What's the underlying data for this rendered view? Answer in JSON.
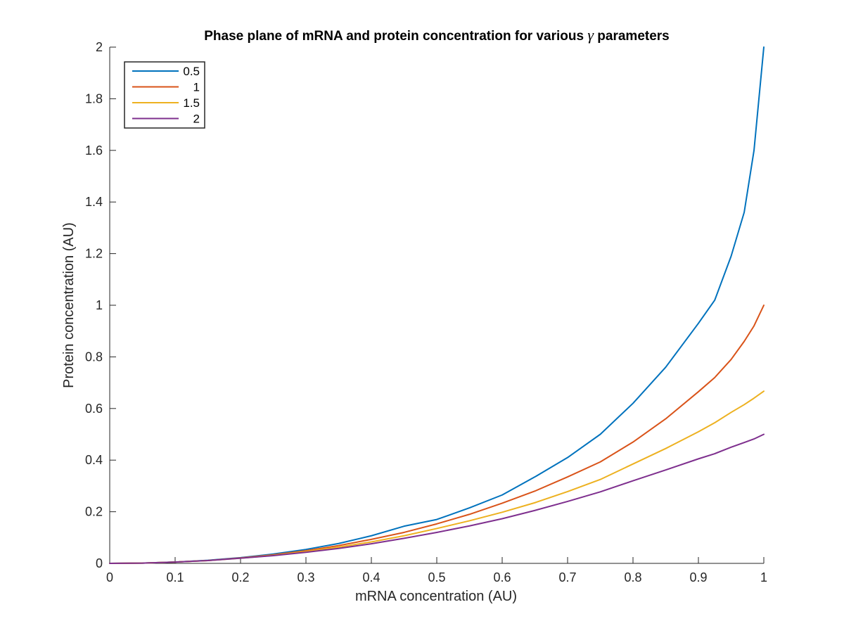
{
  "chart_data": {
    "type": "line",
    "title": "Phase plane of mRNA and protein concentration for various",
    "title_symbol": "γ",
    "title_suffix": "parameters",
    "xlabel": "mRNA concentration (AU)",
    "ylabel": "Protein concentration (AU)",
    "xlim": [
      0,
      1
    ],
    "ylim": [
      0,
      2
    ],
    "xticks": [
      "0",
      "0.1",
      "0.2",
      "0.3",
      "0.4",
      "0.5",
      "0.6",
      "0.7",
      "0.8",
      "0.9",
      "1"
    ],
    "yticks": [
      "0",
      "0.2",
      "0.4",
      "0.6",
      "0.8",
      "1",
      "1.2",
      "1.4",
      "1.6",
      "1.8",
      "2"
    ],
    "grid": false,
    "legend_position": "top-left",
    "x": [
      0,
      0.05,
      0.1,
      0.15,
      0.2,
      0.25,
      0.3,
      0.35,
      0.4,
      0.45,
      0.5,
      0.55,
      0.6,
      0.65,
      0.7,
      0.75,
      0.8,
      0.85,
      0.9,
      0.925,
      0.95,
      0.97,
      0.985,
      1.0
    ],
    "series": [
      {
        "name": "0.5",
        "color": "#0072BD",
        "values": [
          0,
          0.001,
          0.005,
          0.012,
          0.022,
          0.036,
          0.054,
          0.077,
          0.107,
          0.144,
          0.17,
          0.215,
          0.265,
          0.335,
          0.41,
          0.5,
          0.62,
          0.76,
          0.93,
          1.02,
          1.19,
          1.36,
          1.6,
          2.0
        ]
      },
      {
        "name": "1",
        "color": "#D95319",
        "values": [
          0,
          0.001,
          0.005,
          0.011,
          0.021,
          0.033,
          0.049,
          0.069,
          0.093,
          0.12,
          0.153,
          0.19,
          0.233,
          0.28,
          0.335,
          0.393,
          0.47,
          0.56,
          0.665,
          0.72,
          0.79,
          0.86,
          0.92,
          1.0
        ]
      },
      {
        "name": "1.5",
        "color": "#EDB120",
        "values": [
          0,
          0.001,
          0.005,
          0.011,
          0.02,
          0.031,
          0.046,
          0.063,
          0.083,
          0.107,
          0.135,
          0.165,
          0.198,
          0.235,
          0.278,
          0.325,
          0.385,
          0.445,
          0.51,
          0.545,
          0.585,
          0.615,
          0.64,
          0.667
        ]
      },
      {
        "name": "2",
        "color": "#7E2F8E",
        "values": [
          0,
          0.001,
          0.005,
          0.011,
          0.02,
          0.03,
          0.043,
          0.058,
          0.076,
          0.097,
          0.12,
          0.145,
          0.173,
          0.205,
          0.24,
          0.277,
          0.32,
          0.362,
          0.405,
          0.425,
          0.45,
          0.468,
          0.482,
          0.5
        ]
      }
    ]
  }
}
